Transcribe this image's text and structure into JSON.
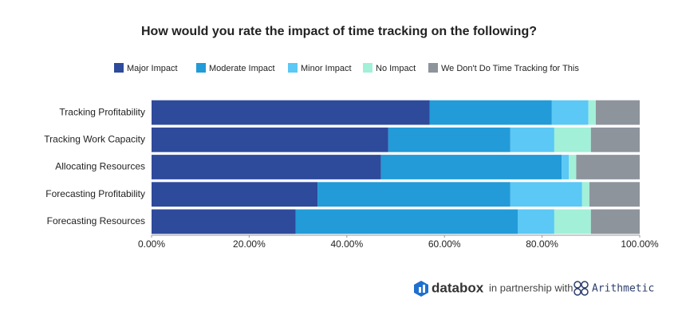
{
  "chart_data": {
    "type": "stacked-barh",
    "title": "How would you rate the impact of time tracking on the following?",
    "categories": [
      "Tracking Profitability",
      "Tracking Work Capacity",
      "Allocating Resources",
      "Forecasting Profitability",
      "Forecasting Resources"
    ],
    "series": [
      {
        "name": "Major Impact",
        "color": "#2e4a9b",
        "values": [
          57,
          48.5,
          47,
          34,
          29.5
        ]
      },
      {
        "name": "Moderate Impact",
        "color": "#229bd8",
        "values": [
          25,
          25,
          37,
          39.5,
          45.5
        ]
      },
      {
        "name": "Minor Impact",
        "color": "#5bc8f5",
        "values": [
          7.5,
          9,
          1.5,
          14.7,
          7.5
        ]
      },
      {
        "name": "No Impact",
        "color": "#a2f0d8",
        "values": [
          1.5,
          7.5,
          1.5,
          1.5,
          7.5
        ]
      },
      {
        "name": "We Don't Do Time Tracking for This",
        "color": "#8e949c",
        "values": [
          9,
          10,
          13,
          10.3,
          10
        ]
      }
    ],
    "xlim": [
      0,
      100
    ],
    "xticks": [
      {
        "value": 0,
        "label": "0.00%"
      },
      {
        "value": 20,
        "label": "20.00%"
      },
      {
        "value": 40,
        "label": "40.00%"
      },
      {
        "value": 60,
        "label": "60.00%"
      },
      {
        "value": 80,
        "label": "80.00%"
      },
      {
        "value": 100,
        "label": "100.00%"
      }
    ],
    "legend": "top"
  },
  "branding": {
    "logo": "databox",
    "text": "in partnership with",
    "partner": "Arithmetic"
  }
}
